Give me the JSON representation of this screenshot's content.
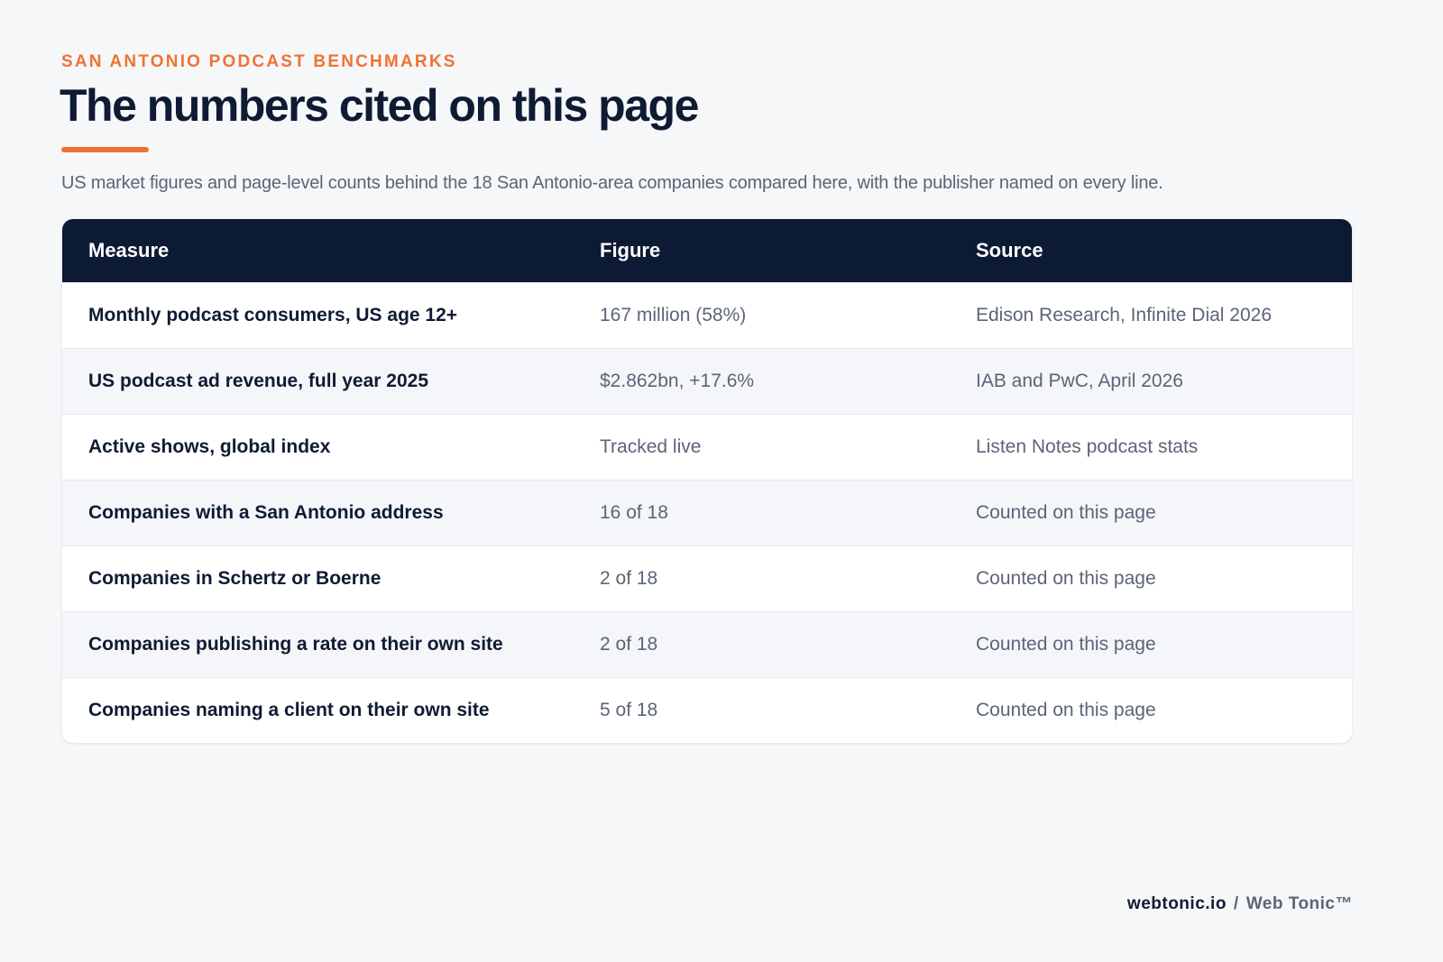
{
  "header": {
    "eyebrow": "SAN ANTONIO PODCAST BENCHMARKS",
    "title": "The numbers cited on this page",
    "subtitle": "US market figures and page-level counts behind the 18 San Antonio-area companies compared here, with the publisher named on every line."
  },
  "table": {
    "columns": [
      "Measure",
      "Figure",
      "Source"
    ],
    "rows": [
      [
        "Monthly podcast consumers, US age 12+",
        "167 million (58%)",
        "Edison Research, Infinite Dial 2026"
      ],
      [
        "US podcast ad revenue, full year 2025",
        "$2.862bn, +17.6%",
        "IAB and PwC, April 2026"
      ],
      [
        "Active shows, global index",
        "Tracked live",
        "Listen Notes podcast stats"
      ],
      [
        "Companies with a San Antonio address",
        "16 of 18",
        "Counted on this page"
      ],
      [
        "Companies in Schertz or Boerne",
        "2 of 18",
        "Counted on this page"
      ],
      [
        "Companies publishing a rate on their own site",
        "2 of 18",
        "Counted on this page"
      ],
      [
        "Companies naming a client on their own site",
        "5 of 18",
        "Counted on this page"
      ]
    ]
  },
  "footer": {
    "site": "webtonic.io",
    "separator": "/",
    "brand": "Web Tonic™"
  }
}
